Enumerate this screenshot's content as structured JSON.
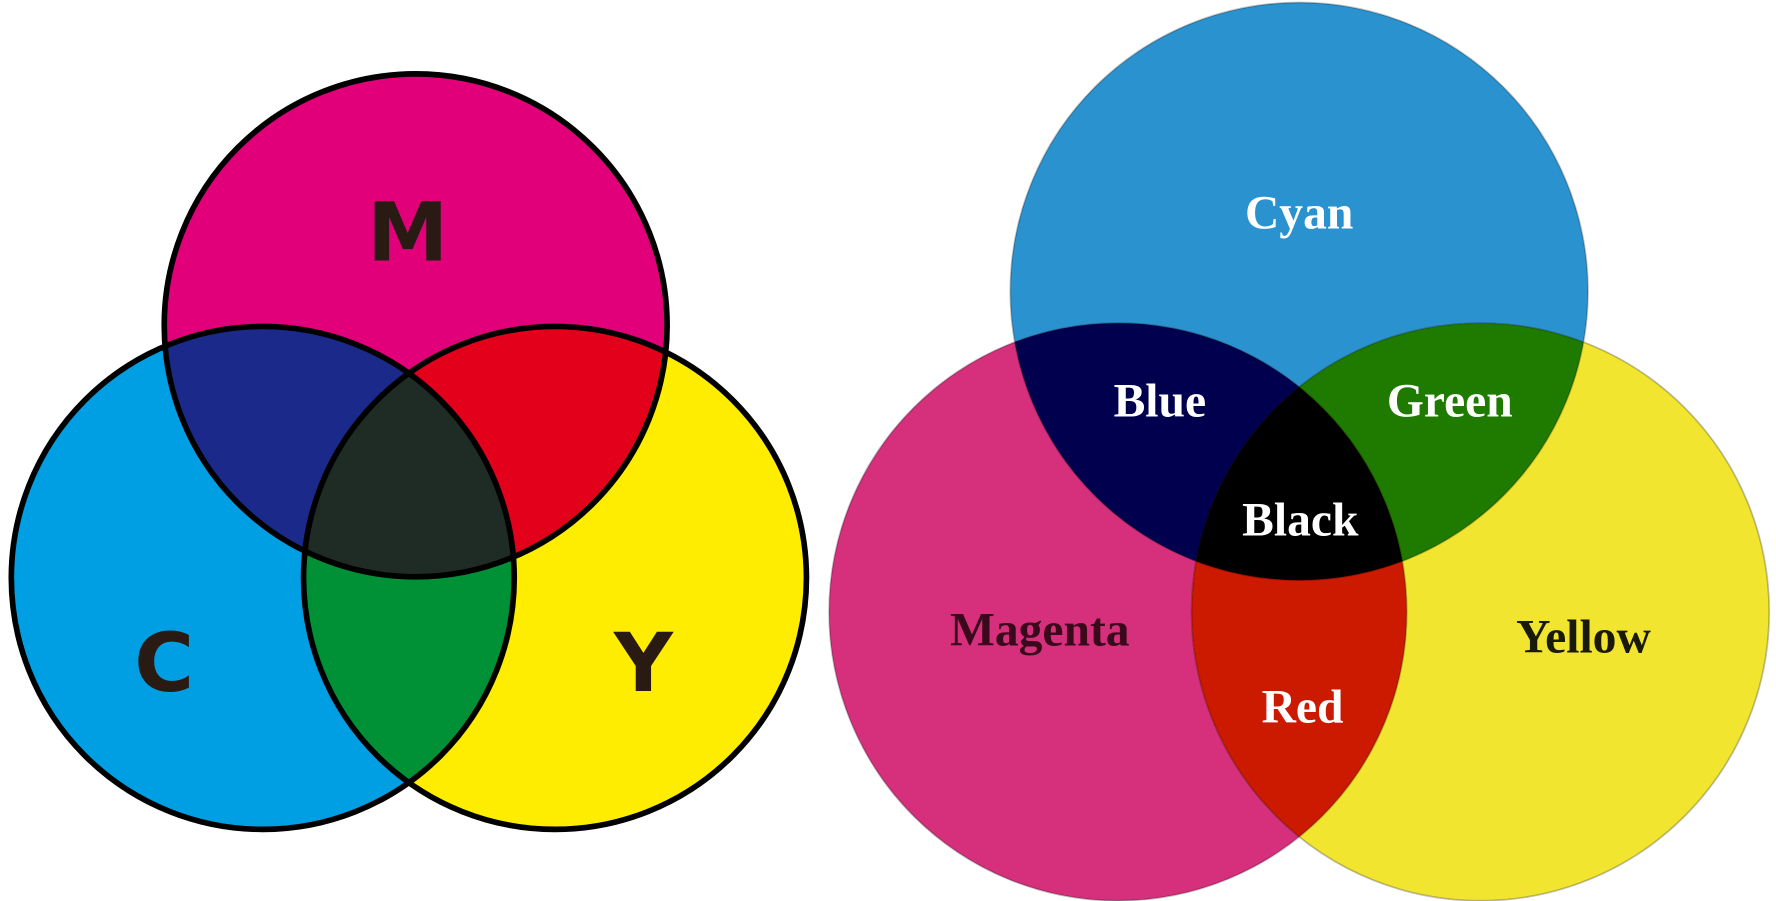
{
  "left": {
    "labels": [
      "M",
      "C",
      "Y"
    ]
  },
  "right": {
    "labels": [
      "Cyan",
      "Blue",
      "Green",
      "Black",
      "Magenta",
      "Yellow",
      "Red"
    ]
  }
}
